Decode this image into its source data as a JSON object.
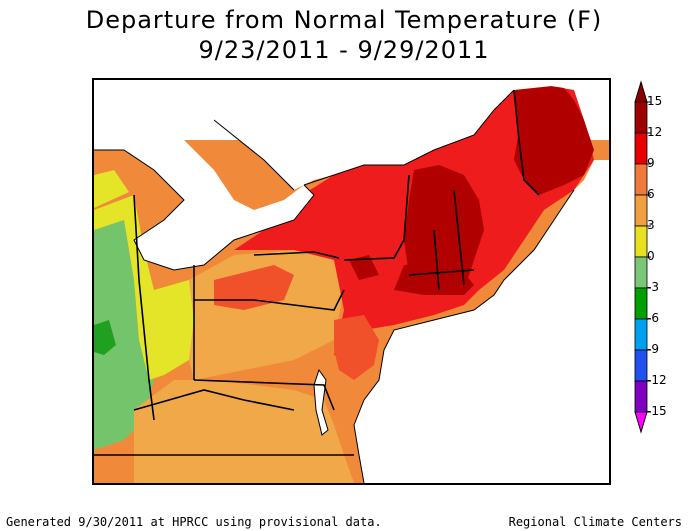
{
  "title": {
    "line1": "Departure from Normal Temperature (F)",
    "line2": "9/23/2011 - 9/29/2011"
  },
  "legend": {
    "levels": [
      {
        "value": 15,
        "label": "15",
        "color": "#9c0000"
      },
      {
        "value": 12,
        "label": "12",
        "color": "#e60000"
      },
      {
        "value": 9,
        "label": "9",
        "color": "#f07a3c"
      },
      {
        "value": 6,
        "label": "6",
        "color": "#f0a040"
      },
      {
        "value": 3,
        "label": "3",
        "color": "#e8e020"
      },
      {
        "value": 0,
        "label": "0",
        "color": "#78c878"
      },
      {
        "value": -3,
        "label": "-3",
        "color": "#00a000"
      },
      {
        "value": -6,
        "label": "-6",
        "color": "#00a0f0"
      },
      {
        "value": -9,
        "label": "-9",
        "color": "#2050f0"
      },
      {
        "value": -12,
        "label": "-12",
        "color": "#8000c0"
      },
      {
        "value": -15,
        "label": "-15",
        "color": "#ff40ff"
      }
    ],
    "top_color": "#8b0000",
    "bottom_color": "#ff00ff"
  },
  "footer": {
    "left": "Generated 9/30/2011 at HPRCC using provisional data.",
    "right": "Regional Climate Centers"
  },
  "map_colors": {
    "dark_red": "#b00000",
    "red": "#ee1c1c",
    "orange_red": "#f0502a",
    "orange": "#f08a3a",
    "light_orange": "#f0a848",
    "yellow": "#e4e428",
    "light_green": "#74c46c",
    "green": "#20a020",
    "water": "#ffffff",
    "land_outside": "#ffffff"
  }
}
